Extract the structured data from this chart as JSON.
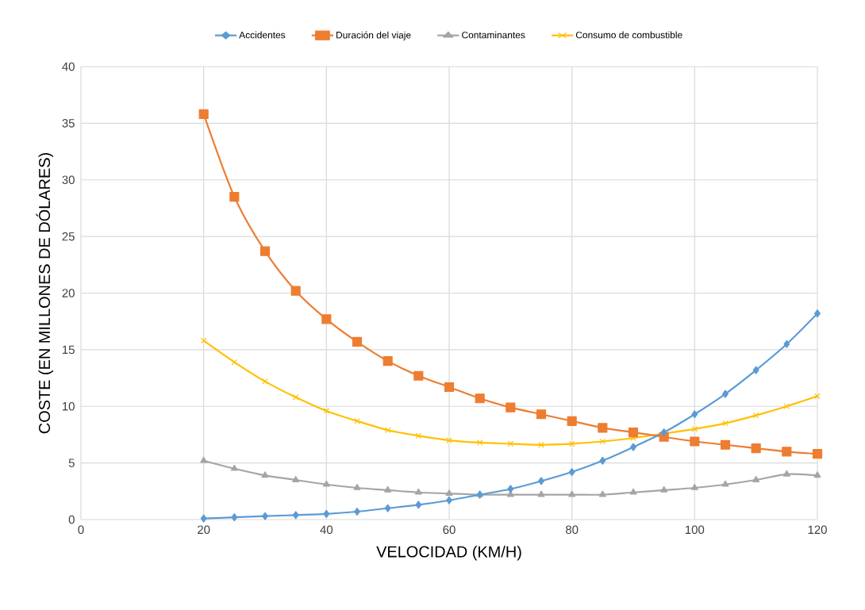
{
  "chart_data": {
    "type": "line",
    "xlabel": "VELOCIDAD (KM/H)",
    "ylabel": "COSTE (EN MILLONES DE DÓLARES)",
    "x": [
      20,
      25,
      30,
      35,
      40,
      45,
      50,
      55,
      60,
      65,
      70,
      75,
      80,
      85,
      90,
      95,
      100,
      105,
      110,
      115,
      120
    ],
    "series": [
      {
        "name": "Accidentes",
        "color": "#5b9bd5",
        "marker": "diamond",
        "values": [
          0.1,
          0.2,
          0.3,
          0.4,
          0.5,
          0.7,
          1.0,
          1.3,
          1.7,
          2.2,
          2.7,
          3.4,
          4.2,
          5.2,
          6.4,
          7.7,
          9.3,
          11.1,
          13.2,
          15.5,
          18.2
        ]
      },
      {
        "name": "Duración del viaje",
        "color": "#ed7d31",
        "marker": "square",
        "values": [
          35.8,
          28.5,
          23.7,
          20.2,
          17.7,
          15.7,
          14.0,
          12.7,
          11.7,
          10.7,
          9.9,
          9.3,
          8.7,
          8.1,
          7.7,
          7.3,
          6.9,
          6.6,
          6.3,
          6.0,
          5.8
        ]
      },
      {
        "name": "Contaminantes",
        "color": "#a5a5a5",
        "marker": "triangle",
        "values": [
          5.2,
          4.5,
          3.9,
          3.5,
          3.1,
          2.8,
          2.6,
          2.4,
          2.3,
          2.2,
          2.2,
          2.2,
          2.2,
          2.2,
          2.4,
          2.6,
          2.8,
          3.1,
          3.5,
          4.0,
          3.9
        ]
      },
      {
        "name": "Consumo de combustible",
        "color": "#ffc000",
        "marker": "cross",
        "values": [
          15.8,
          13.9,
          12.2,
          10.8,
          9.6,
          8.7,
          7.9,
          7.4,
          7.0,
          6.8,
          6.7,
          6.6,
          6.7,
          6.9,
          7.2,
          7.6,
          8.0,
          8.5,
          9.2,
          10.0,
          10.9
        ]
      }
    ],
    "xlim": [
      0,
      120
    ],
    "xticks": [
      0,
      20,
      40,
      60,
      80,
      100,
      120
    ],
    "ylim": [
      0,
      40
    ],
    "yticks": [
      0,
      5,
      10,
      15,
      20,
      25,
      30,
      35,
      40
    ],
    "grid": true,
    "legend": "top",
    "line_style": "solid"
  }
}
